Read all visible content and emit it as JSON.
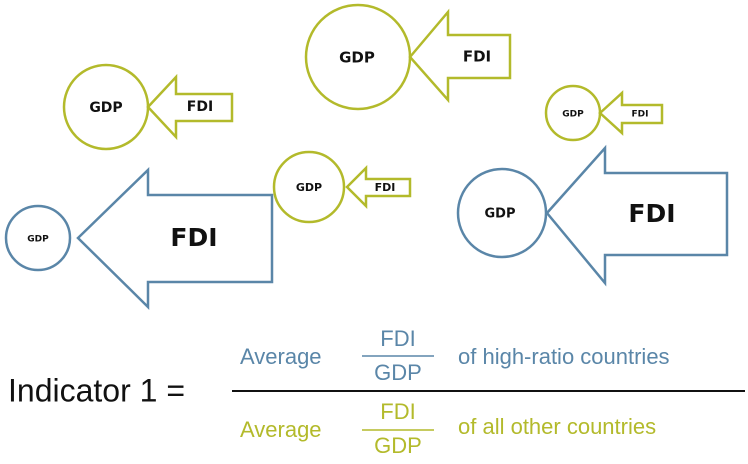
{
  "pairs": [
    {
      "circle": "GDP",
      "arrow": "FDI"
    },
    {
      "circle": "GDP",
      "arrow": "FDI"
    },
    {
      "circle": "GDP",
      "arrow": "FDI"
    },
    {
      "circle": "GDP",
      "arrow": "FDI"
    },
    {
      "circle": "GDP",
      "arrow": "FDI"
    },
    {
      "circle": "GDP",
      "arrow": "FDI"
    }
  ],
  "formula": {
    "lhs": "Indicator 1 =",
    "numerator": {
      "prefix": "Average",
      "top": "FDI",
      "bottom": "GDP",
      "suffix": "of high-ratio countries"
    },
    "denominator": {
      "prefix": "Average",
      "top": "FDI",
      "bottom": "GDP",
      "suffix": "of all other countries"
    }
  }
}
